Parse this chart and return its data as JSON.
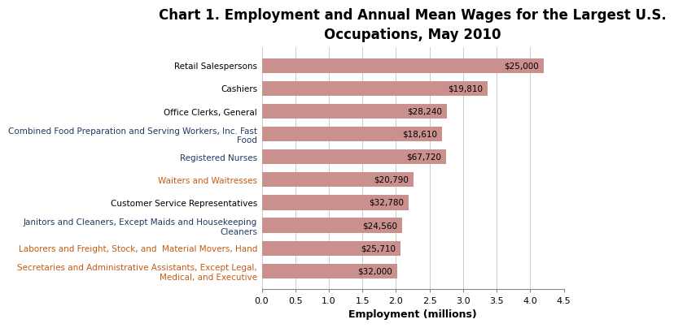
{
  "title": "Chart 1. Employment and Annual Mean Wages for the Largest U.S.\nOccupations, May 2010",
  "xlabel": "Employment (millions)",
  "categories": [
    "Retail Salespersons",
    "Cashiers",
    "Office Clerks, General",
    "Combined Food Preparation and Serving Workers, Inc. Fast\nFood",
    "Registered Nurses",
    "Waiters and Waitresses",
    "Customer Service Representatives",
    "Janitors and Cleaners, Except Maids and Housekeeping\nCleaners",
    "Laborers and Freight, Stock, and  Material Movers, Hand",
    "Secretaries and Administrative Assistants, Except Legal,\nMedical, and Executive"
  ],
  "values": [
    4.2,
    3.36,
    2.76,
    2.69,
    2.74,
    2.26,
    2.19,
    2.09,
    2.07,
    2.02
  ],
  "wage_labels": [
    "$25,000",
    "$19,810",
    "$28,240",
    "$18,610",
    "$67,720",
    "$20,790",
    "$32,780",
    "$24,560",
    "$25,710",
    "$32,000"
  ],
  "bar_color": "#c9908d",
  "label_colors": [
    "#000000",
    "#000000",
    "#000000",
    "#1f3864",
    "#1f3864",
    "#c55a11",
    "#000000",
    "#1f3864",
    "#c55a11",
    "#c55a11"
  ],
  "xlim": [
    0,
    4.5
  ],
  "xticks": [
    0.0,
    0.5,
    1.0,
    1.5,
    2.0,
    2.5,
    3.0,
    3.5,
    4.0,
    4.5
  ],
  "title_fontsize": 12,
  "tick_fontsize": 8,
  "label_fontsize": 7.5,
  "wage_fontsize": 7.5
}
